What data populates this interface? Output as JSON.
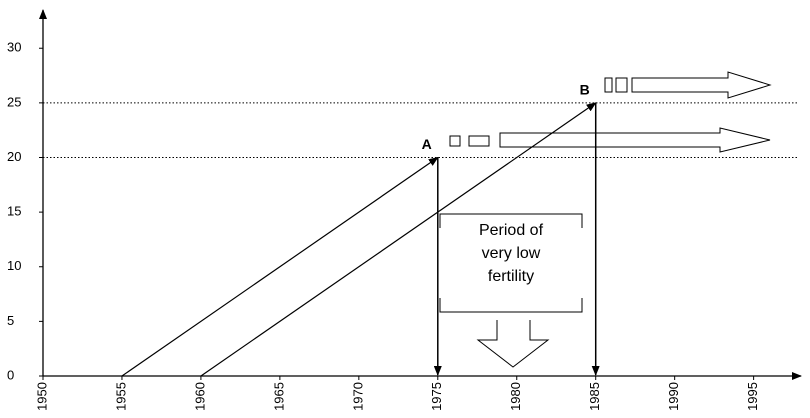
{
  "chart_data": {
    "type": "line",
    "xlim": [
      1950,
      1998
    ],
    "ylim": [
      0,
      33.5
    ],
    "xticks": [
      1950,
      1955,
      1960,
      1965,
      1970,
      1975,
      1980,
      1985,
      1990,
      1995
    ],
    "yticks": [
      0,
      5,
      10,
      15,
      20,
      25,
      30
    ],
    "color": "#000000",
    "series": [
      {
        "x": [
          1955,
          1975
        ],
        "values": [
          0,
          20
        ]
      },
      {
        "x": [
          1960,
          1985
        ],
        "values": [
          0,
          25
        ]
      }
    ],
    "hlines": [
      20,
      25
    ],
    "points": [
      {
        "label": "A",
        "x": 1975,
        "y": 20
      },
      {
        "label": "B",
        "x": 1985,
        "y": 25
      }
    ],
    "annotation": [
      "Period of",
      "very low",
      "fertility"
    ]
  }
}
